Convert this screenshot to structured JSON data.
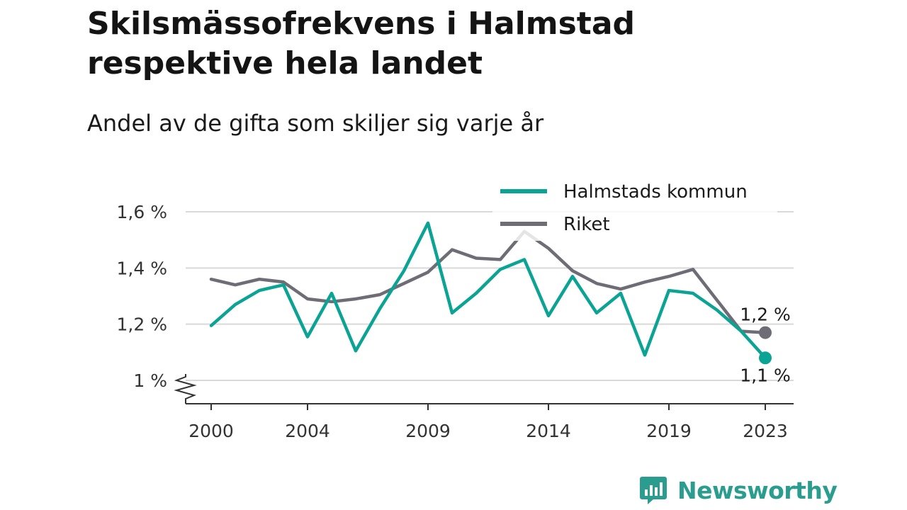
{
  "title": "Skilsmässofrekvens i Halmstad respektive hela landet",
  "subtitle": "Andel av de gifta som skiljer sig varje år",
  "brand": "Newsworthy",
  "colors": {
    "halmstad": "#0aa394",
    "riket": "#6e6d76",
    "grid": "#d9d9d9",
    "axis": "#333333",
    "brand": "#2a9d8f"
  },
  "chart_data": {
    "type": "line",
    "x": [
      2000,
      2001,
      2002,
      2003,
      2004,
      2005,
      2006,
      2007,
      2008,
      2009,
      2010,
      2011,
      2012,
      2013,
      2014,
      2015,
      2016,
      2017,
      2018,
      2019,
      2020,
      2021,
      2022,
      2023
    ],
    "x_ticks": [
      2000,
      2004,
      2009,
      2014,
      2019,
      2023
    ],
    "x_tick_labels": [
      "2000",
      "2004",
      "2009",
      "2014",
      "2019",
      "2023"
    ],
    "ylim": [
      0.93,
      1.62
    ],
    "y_ticks": [
      1.0,
      1.2,
      1.4,
      1.6
    ],
    "y_tick_labels": [
      "1 %",
      "1,2 %",
      "1,4 %",
      "1,6 %"
    ],
    "y_axis_break": true,
    "grid": "horizontal",
    "legend_position": "top-right",
    "series": [
      {
        "name": "Halmstads kommun",
        "color_key": "halmstad",
        "values": [
          1.195,
          1.27,
          1.32,
          1.34,
          1.155,
          1.31,
          1.105,
          1.255,
          1.39,
          1.56,
          1.24,
          1.31,
          1.395,
          1.43,
          1.23,
          1.37,
          1.24,
          1.31,
          1.09,
          1.32,
          1.31,
          1.25,
          1.175,
          1.08
        ],
        "end_label": "1,1 %"
      },
      {
        "name": "Riket",
        "color_key": "riket",
        "values": [
          1.36,
          1.34,
          1.36,
          1.35,
          1.29,
          1.28,
          1.29,
          1.305,
          1.345,
          1.385,
          1.465,
          1.435,
          1.43,
          1.53,
          1.47,
          1.39,
          1.345,
          1.325,
          1.35,
          1.37,
          1.395,
          1.285,
          1.175,
          1.17
        ],
        "end_label": "1,2 %"
      }
    ]
  }
}
